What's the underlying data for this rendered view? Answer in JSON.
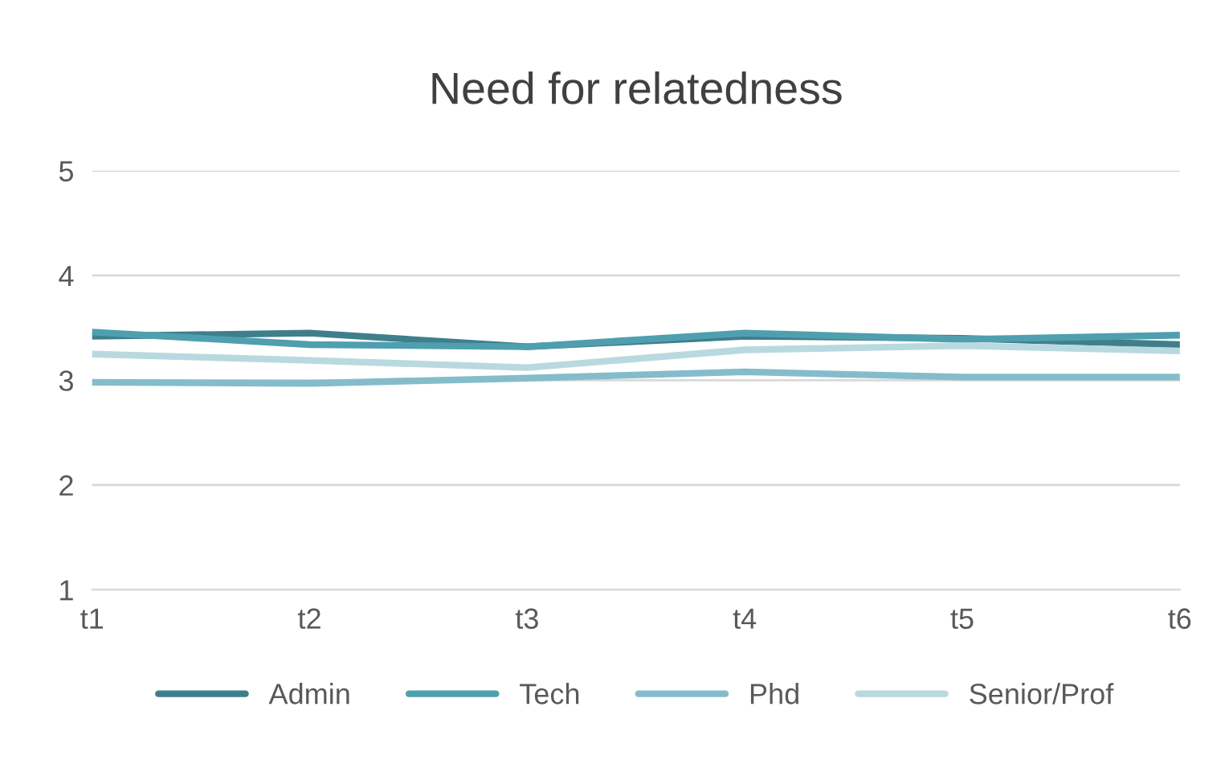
{
  "chart_data": {
    "type": "line",
    "title": "Need for relatedness",
    "categories": [
      "t1",
      "t2",
      "t3",
      "t4",
      "t5",
      "t6"
    ],
    "series": [
      {
        "name": "Admin",
        "color": "#3f7f8c",
        "values": [
          3.42,
          3.45,
          3.32,
          3.42,
          3.4,
          3.34
        ]
      },
      {
        "name": "Tech",
        "color": "#4f9faf",
        "values": [
          3.46,
          3.34,
          3.32,
          3.45,
          3.39,
          3.43
        ]
      },
      {
        "name": "Phd",
        "color": "#84bccb",
        "values": [
          2.98,
          2.97,
          3.02,
          3.08,
          3.03,
          3.03
        ]
      },
      {
        "name": "Senior/Prof",
        "color": "#b9d9e0",
        "values": [
          3.25,
          3.19,
          3.12,
          3.29,
          3.33,
          3.28
        ]
      }
    ],
    "ylim": [
      1,
      5
    ],
    "yticks": [
      1,
      2,
      3,
      4,
      5
    ],
    "grid": "y",
    "legend": "bottom",
    "marker": "none",
    "line_style": "solid"
  }
}
